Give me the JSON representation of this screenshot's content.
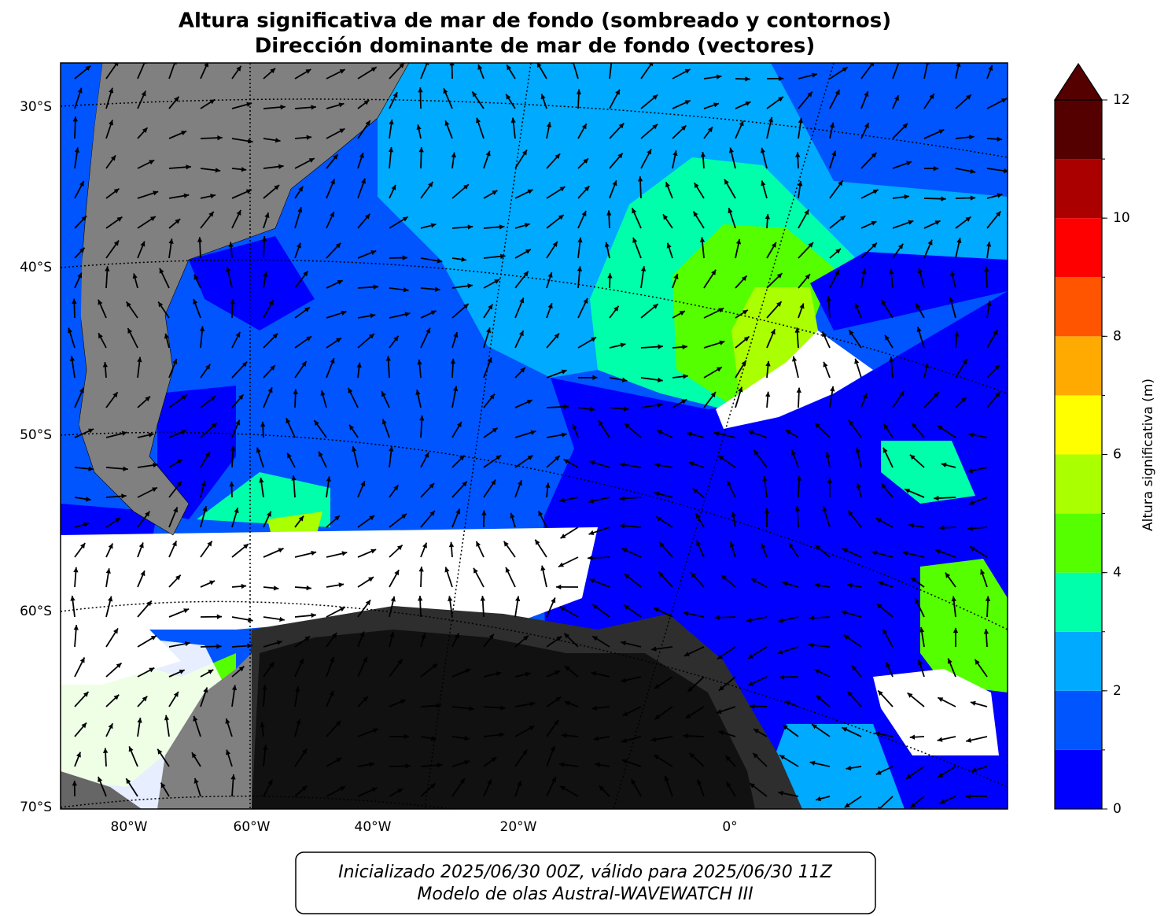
{
  "title": [
    "Altura significativa de mar de fondo (sombreado y contornos)",
    "Dirección dominante de mar de fondo (vectores)"
  ],
  "map": {
    "lat_labels": [
      "30°S",
      "40°S",
      "50°S",
      "60°S",
      "70°S"
    ],
    "lon_labels": [
      "80°W",
      "60°W",
      "40°W",
      "20°W",
      "0°"
    ]
  },
  "colorbar": {
    "label": "Altura significativa (m)",
    "ticks": [
      0,
      2,
      4,
      6,
      8,
      10,
      12
    ],
    "levels": [
      0,
      1,
      2,
      3,
      4,
      5,
      6,
      7,
      8,
      9,
      10,
      11,
      12
    ],
    "colors": [
      "#0000ff",
      "#0055ff",
      "#00aaff",
      "#00ffaa",
      "#55ff00",
      "#aaff00",
      "#ffff00",
      "#ffaa00",
      "#ff5500",
      "#ff0000",
      "#aa0000",
      "#550000"
    ],
    "extend_color": "#550000"
  },
  "footer": [
    "Inicializado 2025/06/30 00Z, válido para 2025/06/30 11Z",
    "Modelo de olas Austral-WAVEWATCH III"
  ]
}
